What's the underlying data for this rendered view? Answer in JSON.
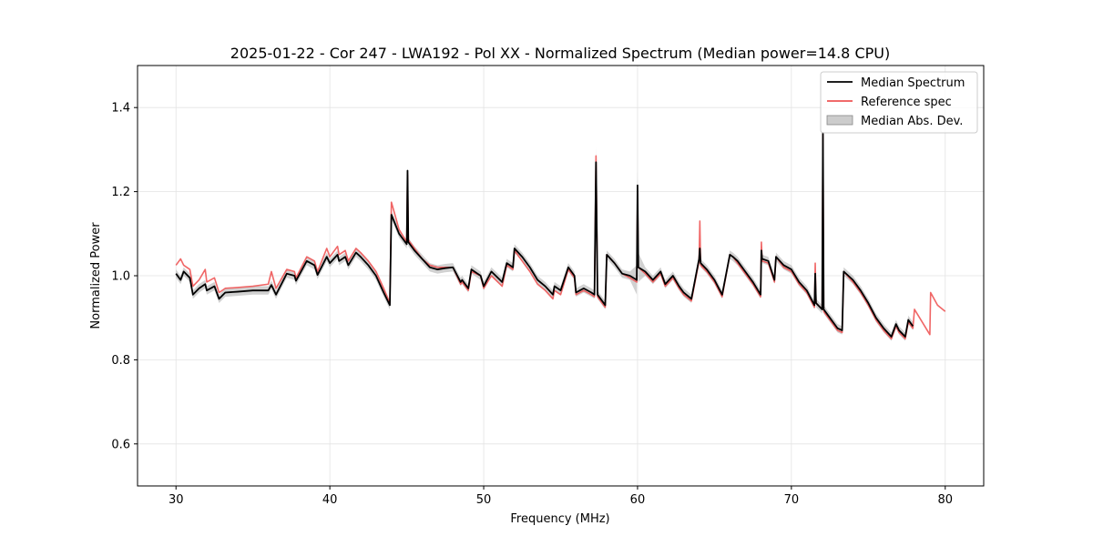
{
  "chart_data": {
    "type": "line",
    "title": "2025-01-22 - Cor 247 - LWA192 - Pol XX - Normalized Spectrum (Median power=14.8 CPU)",
    "xlabel": "Frequency (MHz)",
    "ylabel": "Normalized Power",
    "xlim": [
      27.5,
      82.5
    ],
    "ylim": [
      0.5,
      1.5
    ],
    "xticks": [
      30,
      40,
      50,
      60,
      70,
      80
    ],
    "yticks": [
      0.6,
      0.8,
      1.0,
      1.2,
      1.4
    ],
    "xtick_labels": [
      "30",
      "40",
      "50",
      "60",
      "70",
      "80"
    ],
    "ytick_labels": [
      "0.6",
      "0.8",
      "1.0",
      "1.2",
      "1.4"
    ],
    "grid": true,
    "legend_position": "top-right",
    "series": [
      {
        "name": "Median Spectrum",
        "color": "#000000",
        "x": [
          30.0,
          30.3,
          30.5,
          30.9,
          31.1,
          31.5,
          31.9,
          32.0,
          32.5,
          32.8,
          33.2,
          34.0,
          35.0,
          36.0,
          36.2,
          36.5,
          37.2,
          37.7,
          37.8,
          38.5,
          39.0,
          39.2,
          39.8,
          40.0,
          40.5,
          40.6,
          41.0,
          41.2,
          41.7,
          42.0,
          42.5,
          43.0,
          43.5,
          43.9,
          44.0,
          44.5,
          45.0,
          45.05,
          45.1,
          45.5,
          46.0,
          46.5,
          47.0,
          47.5,
          48.0,
          48.5,
          48.6,
          49.0,
          49.2,
          49.8,
          50.0,
          50.5,
          51.2,
          51.5,
          51.9,
          52.0,
          52.5,
          53.0,
          53.5,
          54.0,
          54.5,
          54.6,
          55.0,
          55.5,
          55.9,
          56.0,
          56.5,
          57.0,
          57.2,
          57.3,
          57.4,
          57.9,
          58.0,
          58.5,
          59.0,
          59.5,
          59.95,
          60.0,
          60.05,
          60.5,
          61.0,
          61.5,
          61.8,
          62.3,
          62.7,
          63.0,
          63.5,
          64.0,
          64.05,
          64.1,
          64.5,
          65.0,
          65.5,
          66.0,
          66.2,
          66.5,
          67.0,
          67.5,
          68.0,
          68.05,
          68.1,
          68.5,
          68.9,
          69.0,
          69.5,
          70.0,
          70.5,
          71.0,
          71.5,
          71.55,
          71.6,
          72.0,
          72.05,
          72.1,
          72.5,
          73.0,
          73.3,
          73.4,
          74.0,
          74.5,
          75.0,
          75.5,
          76.0,
          76.5,
          76.8,
          77.0,
          77.4,
          77.6,
          77.9
        ],
        "y": [
          1.005,
          0.99,
          1.01,
          0.995,
          0.955,
          0.97,
          0.98,
          0.965,
          0.975,
          0.945,
          0.96,
          0.962,
          0.965,
          0.965,
          0.978,
          0.955,
          1.005,
          1.0,
          0.988,
          1.035,
          1.025,
          1.002,
          1.045,
          1.03,
          1.05,
          1.035,
          1.045,
          1.025,
          1.055,
          1.045,
          1.025,
          1.0,
          0.96,
          0.93,
          1.145,
          1.1,
          1.075,
          1.25,
          1.08,
          1.06,
          1.04,
          1.02,
          1.015,
          1.018,
          1.02,
          0.985,
          0.99,
          0.97,
          1.015,
          1.0,
          0.975,
          1.01,
          0.985,
          1.03,
          1.02,
          1.065,
          1.045,
          1.02,
          0.99,
          0.975,
          0.955,
          0.975,
          0.965,
          1.02,
          1.0,
          0.96,
          0.97,
          0.96,
          0.955,
          1.27,
          0.955,
          0.93,
          1.05,
          1.03,
          1.005,
          1.0,
          0.99,
          1.215,
          1.02,
          1.01,
          0.99,
          1.01,
          0.98,
          1.0,
          0.975,
          0.96,
          0.945,
          1.04,
          1.065,
          1.03,
          1.015,
          0.99,
          0.955,
          1.05,
          1.045,
          1.035,
          1.01,
          0.985,
          0.955,
          1.06,
          1.04,
          1.035,
          0.99,
          1.045,
          1.025,
          1.015,
          0.985,
          0.965,
          0.93,
          1.005,
          0.935,
          0.92,
          1.34,
          0.92,
          0.9,
          0.875,
          0.87,
          1.01,
          0.99,
          0.965,
          0.935,
          0.9,
          0.875,
          0.855,
          0.885,
          0.87,
          0.855,
          0.895,
          0.88
        ]
      },
      {
        "name": "Reference spec",
        "color": "#ee5555",
        "x": [
          30.0,
          30.3,
          30.5,
          30.9,
          31.1,
          31.5,
          31.9,
          32.0,
          32.5,
          32.8,
          33.2,
          34.0,
          35.0,
          36.0,
          36.2,
          36.5,
          37.2,
          37.7,
          37.8,
          38.5,
          39.0,
          39.2,
          39.8,
          40.0,
          40.5,
          40.6,
          41.0,
          41.2,
          41.7,
          42.0,
          42.5,
          43.0,
          43.5,
          43.9,
          44.0,
          44.5,
          45.0,
          45.05,
          45.1,
          45.5,
          46.0,
          46.5,
          47.0,
          47.5,
          48.0,
          48.5,
          48.6,
          49.0,
          49.2,
          49.8,
          50.0,
          50.5,
          51.2,
          51.5,
          51.9,
          52.0,
          52.5,
          53.0,
          53.5,
          54.0,
          54.5,
          54.6,
          55.0,
          55.5,
          55.9,
          56.0,
          56.5,
          57.0,
          57.2,
          57.3,
          57.4,
          57.9,
          58.0,
          58.5,
          59.0,
          59.5,
          59.95,
          60.0,
          60.05,
          60.5,
          61.0,
          61.5,
          61.8,
          62.3,
          62.7,
          63.0,
          63.5,
          64.0,
          64.05,
          64.1,
          64.5,
          65.0,
          65.5,
          66.0,
          66.2,
          66.5,
          67.0,
          67.5,
          68.0,
          68.05,
          68.1,
          68.5,
          68.9,
          69.0,
          69.5,
          70.0,
          70.5,
          71.0,
          71.5,
          71.55,
          71.6,
          72.0,
          72.05,
          72.1,
          72.5,
          73.0,
          73.3,
          73.4,
          74.0,
          74.5,
          75.0,
          75.5,
          76.0,
          76.5,
          76.8,
          77.0,
          77.4,
          77.6,
          77.9,
          78.0,
          78.5,
          79.0,
          79.05,
          79.5,
          80.0
        ],
        "y": [
          1.025,
          1.04,
          1.025,
          1.015,
          0.975,
          0.99,
          1.015,
          0.985,
          0.995,
          0.96,
          0.97,
          0.972,
          0.975,
          0.98,
          1.01,
          0.97,
          1.015,
          1.01,
          0.995,
          1.045,
          1.035,
          1.01,
          1.065,
          1.045,
          1.07,
          1.05,
          1.06,
          1.035,
          1.065,
          1.055,
          1.035,
          1.01,
          0.97,
          0.935,
          1.175,
          1.11,
          1.08,
          1.24,
          1.085,
          1.065,
          1.04,
          1.025,
          1.02,
          1.02,
          1.02,
          0.98,
          0.985,
          0.965,
          1.01,
          1.0,
          0.97,
          1.0,
          0.975,
          1.025,
          1.015,
          1.06,
          1.035,
          1.01,
          0.98,
          0.965,
          0.945,
          0.965,
          0.955,
          1.015,
          0.995,
          0.955,
          0.965,
          0.955,
          0.95,
          1.285,
          0.95,
          0.925,
          1.05,
          1.03,
          1.005,
          0.995,
          0.985,
          1.195,
          1.02,
          1.005,
          0.985,
          1.005,
          0.975,
          0.995,
          0.97,
          0.955,
          0.94,
          1.035,
          1.13,
          1.025,
          1.01,
          0.985,
          0.95,
          1.05,
          1.045,
          1.03,
          1.005,
          0.98,
          0.95,
          1.08,
          1.035,
          1.03,
          0.985,
          1.045,
          1.02,
          1.01,
          0.98,
          0.96,
          0.925,
          1.03,
          0.935,
          0.92,
          1.34,
          0.915,
          0.895,
          0.87,
          0.865,
          1.01,
          0.985,
          0.96,
          0.93,
          0.895,
          0.87,
          0.85,
          0.88,
          0.865,
          0.85,
          0.89,
          0.875,
          0.92,
          0.89,
          0.86,
          0.96,
          0.93,
          0.915
        ]
      }
    ],
    "band": {
      "name": "Median Abs. Dev.",
      "color": "#999999",
      "half_width": 0.01,
      "spike_widths": [
        {
          "x": 57.3,
          "extra": 0.025
        },
        {
          "x": 60.0,
          "extra": 0.025
        }
      ]
    }
  }
}
